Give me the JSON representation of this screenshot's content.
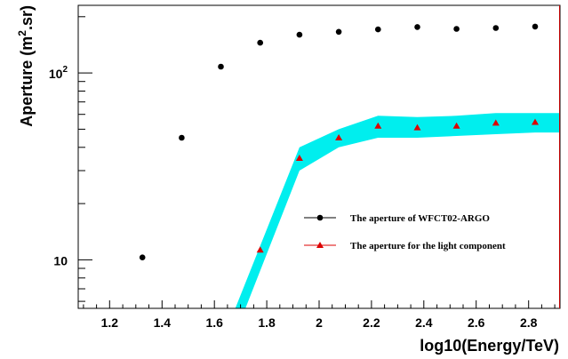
{
  "chart_data": {
    "type": "scatter",
    "title": "",
    "xlabel": "log10(Energy/TeV)",
    "ylabel_main": "Aperture (m",
    "ylabel_sup": "2",
    "ylabel_tail": ".sr)",
    "xlim": [
      1.08,
      2.92
    ],
    "ylim": [
      5.5,
      230
    ],
    "yscale": "log",
    "x_ticks": [
      1.2,
      1.4,
      1.6,
      1.8,
      2.0,
      2.2,
      2.4,
      2.6,
      2.8
    ],
    "x_tick_labels": [
      "1.2",
      "1.4",
      "1.6",
      "1.8",
      "2",
      "2.2",
      "2.4",
      "2.6",
      "2.8"
    ],
    "y_tick_labels": [
      {
        "value": 10,
        "base": "10",
        "exp": ""
      },
      {
        "value": 100,
        "base": "10",
        "exp": "2"
      }
    ],
    "grid": false,
    "legend_position": "center-right",
    "series": [
      {
        "name": "The aperture of WFCT02-ARGO",
        "marker": "circle",
        "color": "#000000",
        "x": [
          1.325,
          1.475,
          1.625,
          1.775,
          1.925,
          2.075,
          2.225,
          2.375,
          2.525,
          2.675,
          2.825
        ],
        "y": [
          10.3,
          45,
          108,
          145,
          160,
          166,
          171,
          176,
          172,
          174,
          177
        ]
      },
      {
        "name": "The aperture for the light component",
        "marker": "triangle",
        "color": "#dd0000",
        "x": [
          1.775,
          1.925,
          2.075,
          2.225,
          2.375,
          2.525,
          2.675,
          2.825
        ],
        "y": [
          11.3,
          35,
          45,
          52,
          51,
          52,
          54,
          54.5
        ],
        "band": {
          "color": "#00eeee",
          "x": [
            1.68,
            1.925,
            2.075,
            2.225,
            2.375,
            2.525,
            2.675,
            2.825,
            2.92
          ],
          "upper": [
            5.5,
            40,
            50,
            59,
            58,
            59,
            61,
            61,
            61
          ],
          "lower": [
            4.0,
            30,
            40,
            45,
            45,
            46,
            47,
            48,
            48
          ]
        }
      }
    ]
  }
}
